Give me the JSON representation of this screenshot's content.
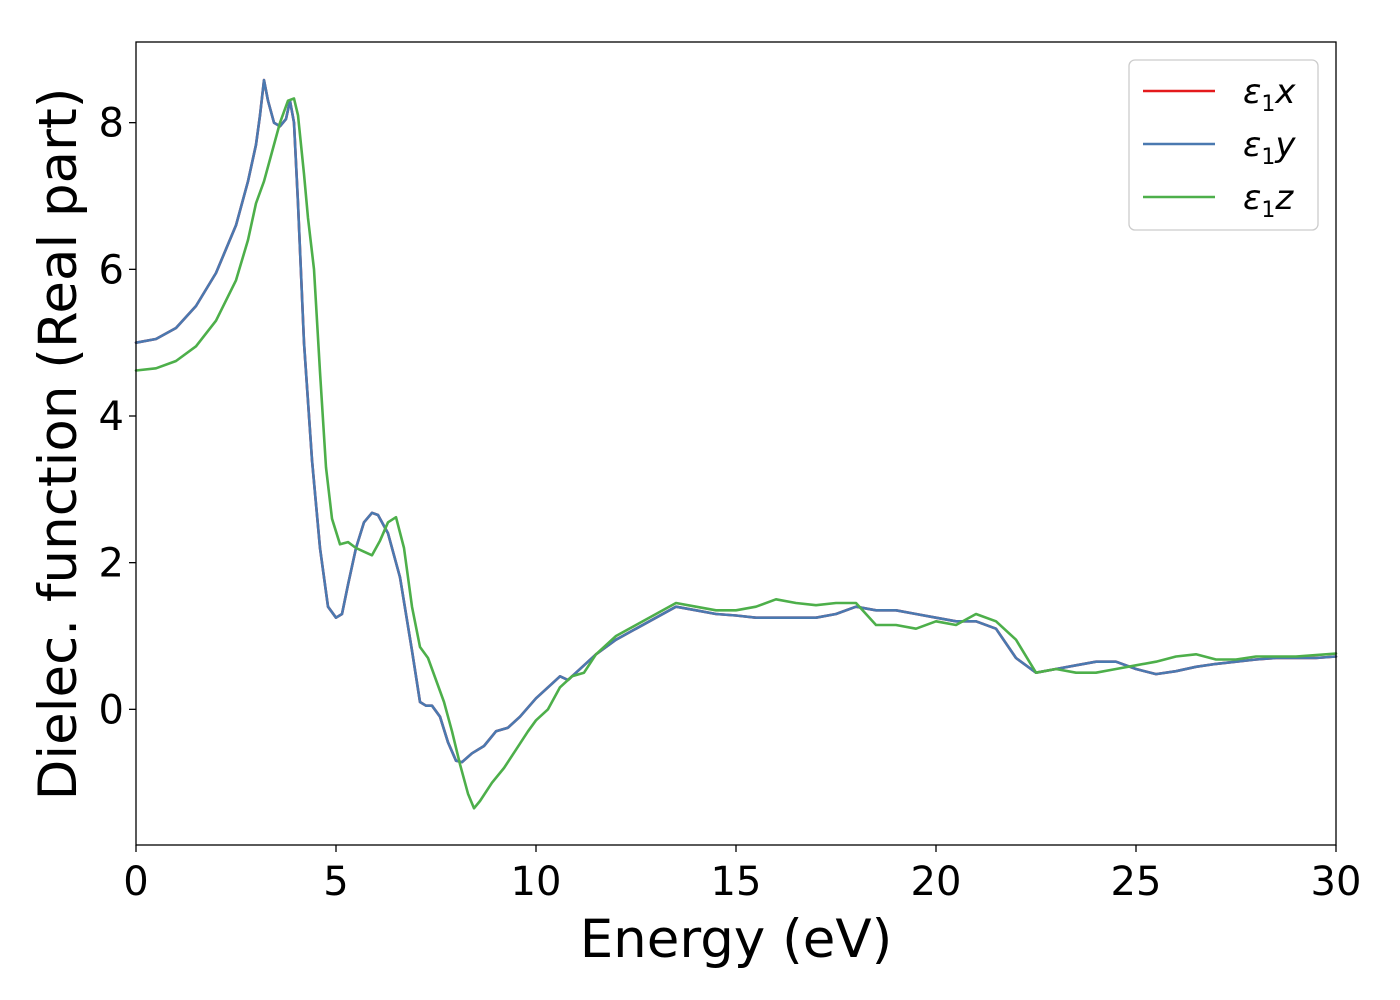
{
  "chart_data": {
    "type": "line",
    "title": "",
    "xlabel": "Energy (eV)",
    "ylabel": "Dielec. function (Real part)",
    "xlim": [
      0,
      30
    ],
    "ylim": [
      -1.85,
      9.1
    ],
    "xticks": [
      0,
      5,
      10,
      15,
      20,
      25,
      30
    ],
    "yticks": [
      0,
      2,
      4,
      6,
      8
    ],
    "grid": false,
    "legend_position": "top-right",
    "series": [
      {
        "name": "ε1x",
        "legend_symbol": "ε",
        "legend_sub": "1",
        "legend_var": "x",
        "color": "#e41a1c",
        "x": [
          0,
          0.5,
          1,
          1.5,
          2,
          2.5,
          2.8,
          3.0,
          3.1,
          3.2,
          3.3,
          3.45,
          3.6,
          3.75,
          3.85,
          3.95,
          4.05,
          4.2,
          4.4,
          4.6,
          4.8,
          5.0,
          5.15,
          5.3,
          5.5,
          5.7,
          5.9,
          6.05,
          6.3,
          6.6,
          6.9,
          7.1,
          7.25,
          7.4,
          7.6,
          7.8,
          8.0,
          8.15,
          8.4,
          8.7,
          9.0,
          9.3,
          9.6,
          10.0,
          10.4,
          10.6,
          10.8,
          11.0,
          11.5,
          12.0,
          12.5,
          13.0,
          13.5,
          14.0,
          14.5,
          15.0,
          15.5,
          16.0,
          16.5,
          17.0,
          17.5,
          18.0,
          18.5,
          19.0,
          19.5,
          20.0,
          20.5,
          21.0,
          21.5,
          22.0,
          22.5,
          23.0,
          23.5,
          24.0,
          24.5,
          25.0,
          25.5,
          26.0,
          26.5,
          27.0,
          27.5,
          28.0,
          28.5,
          29.0,
          29.5,
          30.0
        ],
        "values": [
          5.0,
          5.05,
          5.2,
          5.5,
          5.95,
          6.6,
          7.2,
          7.7,
          8.1,
          8.58,
          8.3,
          8.0,
          7.95,
          8.05,
          8.3,
          8.0,
          6.9,
          5.0,
          3.4,
          2.2,
          1.4,
          1.25,
          1.3,
          1.7,
          2.2,
          2.55,
          2.68,
          2.65,
          2.4,
          1.8,
          0.8,
          0.1,
          0.05,
          0.05,
          -0.1,
          -0.45,
          -0.7,
          -0.72,
          -0.6,
          -0.5,
          -0.3,
          -0.25,
          -0.1,
          0.15,
          0.35,
          0.45,
          0.4,
          0.5,
          0.75,
          0.95,
          1.1,
          1.25,
          1.4,
          1.35,
          1.3,
          1.28,
          1.25,
          1.25,
          1.25,
          1.25,
          1.3,
          1.4,
          1.35,
          1.35,
          1.3,
          1.25,
          1.2,
          1.2,
          1.1,
          0.7,
          0.5,
          0.55,
          0.6,
          0.65,
          0.65,
          0.55,
          0.48,
          0.52,
          0.58,
          0.62,
          0.65,
          0.68,
          0.7,
          0.7,
          0.7,
          0.72
        ]
      },
      {
        "name": "ε1y",
        "legend_symbol": "ε",
        "legend_sub": "1",
        "legend_var": "y",
        "color": "#4a79b0",
        "x": [
          0,
          0.5,
          1,
          1.5,
          2,
          2.5,
          2.8,
          3.0,
          3.1,
          3.2,
          3.3,
          3.45,
          3.6,
          3.75,
          3.85,
          3.95,
          4.05,
          4.2,
          4.4,
          4.6,
          4.8,
          5.0,
          5.15,
          5.3,
          5.5,
          5.7,
          5.9,
          6.05,
          6.3,
          6.6,
          6.9,
          7.1,
          7.25,
          7.4,
          7.6,
          7.8,
          8.0,
          8.15,
          8.4,
          8.7,
          9.0,
          9.3,
          9.6,
          10.0,
          10.4,
          10.6,
          10.8,
          11.0,
          11.5,
          12.0,
          12.5,
          13.0,
          13.5,
          14.0,
          14.5,
          15.0,
          15.5,
          16.0,
          16.5,
          17.0,
          17.5,
          18.0,
          18.5,
          19.0,
          19.5,
          20.0,
          20.5,
          21.0,
          21.5,
          22.0,
          22.5,
          23.0,
          23.5,
          24.0,
          24.5,
          25.0,
          25.5,
          26.0,
          26.5,
          27.0,
          27.5,
          28.0,
          28.5,
          29.0,
          29.5,
          30.0
        ],
        "values": [
          5.0,
          5.05,
          5.2,
          5.5,
          5.95,
          6.6,
          7.2,
          7.7,
          8.1,
          8.58,
          8.3,
          8.0,
          7.95,
          8.05,
          8.3,
          8.0,
          6.9,
          5.0,
          3.4,
          2.2,
          1.4,
          1.25,
          1.3,
          1.7,
          2.2,
          2.55,
          2.68,
          2.65,
          2.4,
          1.8,
          0.8,
          0.1,
          0.05,
          0.05,
          -0.1,
          -0.45,
          -0.7,
          -0.72,
          -0.6,
          -0.5,
          -0.3,
          -0.25,
          -0.1,
          0.15,
          0.35,
          0.45,
          0.4,
          0.5,
          0.75,
          0.95,
          1.1,
          1.25,
          1.4,
          1.35,
          1.3,
          1.28,
          1.25,
          1.25,
          1.25,
          1.25,
          1.3,
          1.4,
          1.35,
          1.35,
          1.3,
          1.25,
          1.2,
          1.2,
          1.1,
          0.7,
          0.5,
          0.55,
          0.6,
          0.65,
          0.65,
          0.55,
          0.48,
          0.52,
          0.58,
          0.62,
          0.65,
          0.68,
          0.7,
          0.7,
          0.7,
          0.72
        ]
      },
      {
        "name": "ε1z",
        "legend_symbol": "ε",
        "legend_sub": "1",
        "legend_var": "z",
        "color": "#4daf4a",
        "x": [
          0,
          0.5,
          1,
          1.5,
          2,
          2.5,
          2.8,
          3.0,
          3.2,
          3.4,
          3.6,
          3.8,
          3.95,
          4.05,
          4.2,
          4.3,
          4.45,
          4.6,
          4.75,
          4.9,
          5.1,
          5.3,
          5.5,
          5.7,
          5.9,
          6.1,
          6.3,
          6.5,
          6.7,
          6.9,
          7.1,
          7.3,
          7.5,
          7.7,
          7.9,
          8.1,
          8.3,
          8.45,
          8.6,
          8.9,
          9.2,
          9.5,
          9.8,
          10.0,
          10.3,
          10.6,
          10.9,
          11.2,
          11.5,
          12.0,
          12.5,
          13.0,
          13.5,
          14.0,
          14.5,
          15.0,
          15.5,
          16.0,
          16.5,
          17.0,
          17.5,
          18.0,
          18.5,
          19.0,
          19.5,
          20.0,
          20.5,
          21.0,
          21.5,
          22.0,
          22.5,
          23.0,
          23.5,
          24.0,
          24.5,
          25.0,
          25.5,
          26.0,
          26.5,
          27.0,
          27.5,
          28.0,
          28.5,
          29.0,
          29.5,
          30.0
        ],
        "values": [
          4.62,
          4.65,
          4.75,
          4.95,
          5.3,
          5.85,
          6.4,
          6.9,
          7.2,
          7.6,
          8.0,
          8.3,
          8.33,
          8.1,
          7.3,
          6.7,
          6.0,
          4.6,
          3.3,
          2.6,
          2.25,
          2.28,
          2.2,
          2.15,
          2.1,
          2.3,
          2.55,
          2.62,
          2.2,
          1.4,
          0.85,
          0.7,
          0.4,
          0.1,
          -0.3,
          -0.75,
          -1.15,
          -1.35,
          -1.25,
          -1.0,
          -0.8,
          -0.55,
          -0.3,
          -0.15,
          0.0,
          0.3,
          0.45,
          0.5,
          0.75,
          1.0,
          1.15,
          1.3,
          1.45,
          1.4,
          1.35,
          1.35,
          1.4,
          1.5,
          1.45,
          1.42,
          1.45,
          1.45,
          1.15,
          1.15,
          1.1,
          1.2,
          1.15,
          1.3,
          1.2,
          0.95,
          0.5,
          0.55,
          0.5,
          0.5,
          0.55,
          0.6,
          0.65,
          0.72,
          0.75,
          0.68,
          0.68,
          0.72,
          0.72,
          0.72,
          0.74,
          0.76
        ]
      }
    ]
  }
}
